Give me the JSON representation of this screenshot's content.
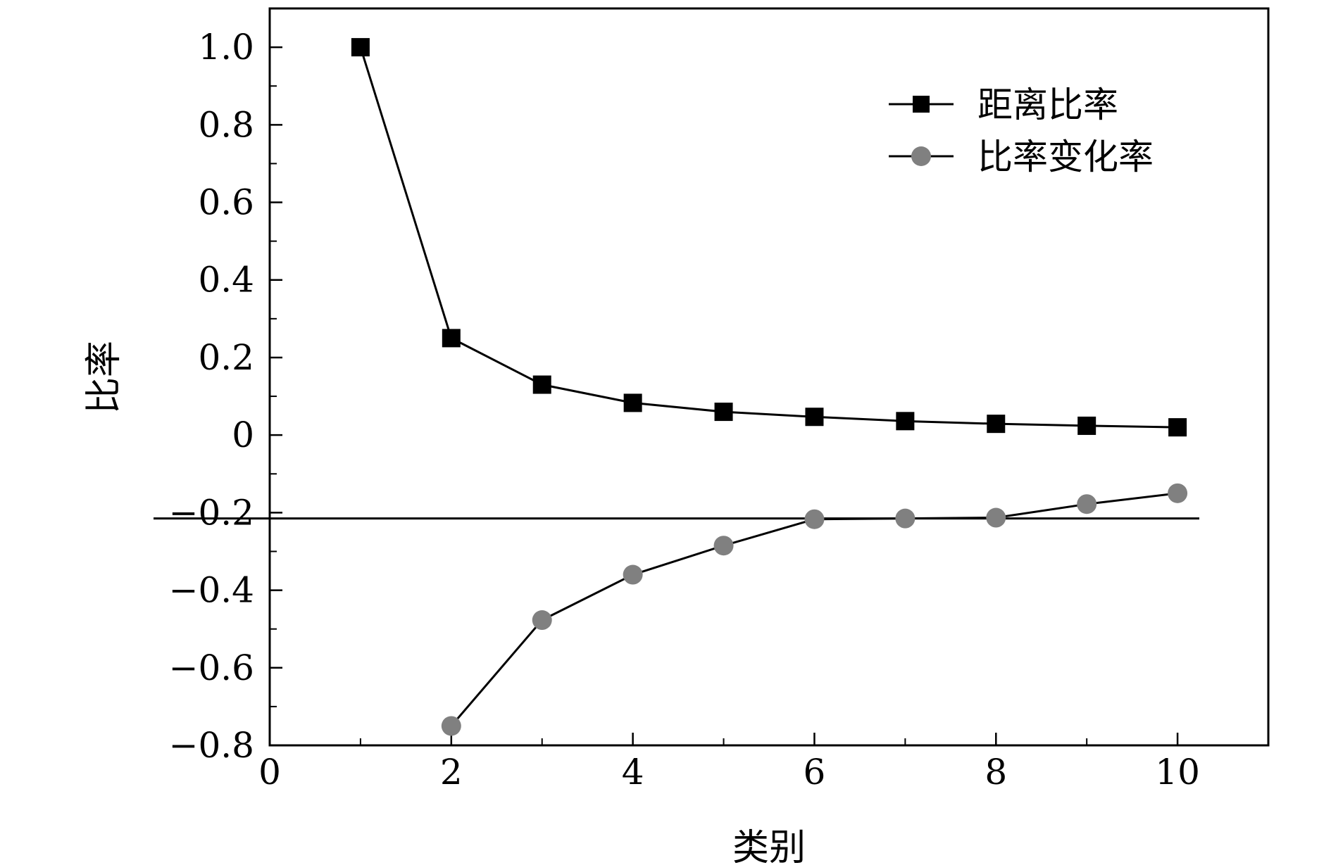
{
  "chart_data": {
    "type": "line",
    "xlabel": "类别",
    "ylabel": "比率",
    "xlim": [
      0,
      11
    ],
    "ylim": [
      -0.8,
      1.1
    ],
    "xticks": [
      0,
      2,
      4,
      6,
      8,
      10
    ],
    "xtick_labels": [
      "0",
      "2",
      "4",
      "6",
      "8",
      "10"
    ],
    "yticks": [
      -0.8,
      -0.6,
      -0.4,
      -0.2,
      0,
      0.2,
      0.4,
      0.6,
      0.8,
      1.0
    ],
    "ytick_labels": [
      "−0.8",
      "−0.6",
      "−0.4",
      "−0.2",
      "0",
      "0.2",
      "0.4",
      "0.6",
      "0.8",
      "1.0"
    ],
    "legend_position": "top-right",
    "reference_line": {
      "y": -0.215
    },
    "series": [
      {
        "name": "距离比率",
        "marker": "square",
        "color": "#000000",
        "x": [
          1,
          2,
          3,
          4,
          5,
          6,
          7,
          8,
          9,
          10
        ],
        "y": [
          1.0,
          0.25,
          0.13,
          0.083,
          0.06,
          0.047,
          0.036,
          0.029,
          0.024,
          0.02
        ]
      },
      {
        "name": "比率变化率",
        "marker": "circle",
        "color": "#808080",
        "x": [
          2,
          3,
          4,
          5,
          6,
          7,
          8,
          9,
          10
        ],
        "y": [
          -0.75,
          -0.477,
          -0.36,
          -0.285,
          -0.217,
          -0.215,
          -0.213,
          -0.178,
          -0.15
        ]
      }
    ]
  }
}
